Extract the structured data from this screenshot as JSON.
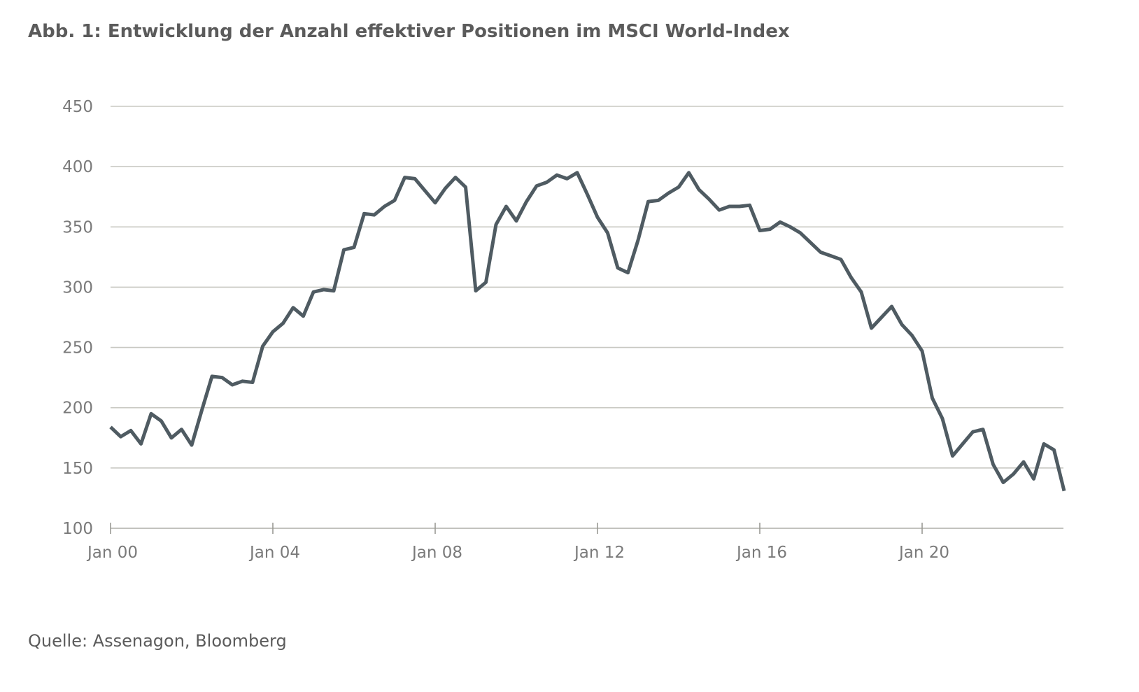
{
  "title": "Abb. 1: Entwicklung der Anzahl effektiver Positionen im MSCI World-Index",
  "source": "Quelle: Assenagon, Bloomberg",
  "chart_data": {
    "type": "line",
    "title": "Abb. 1: Entwicklung der Anzahl effektiver Positionen im MSCI World-Index",
    "xlabel": "",
    "ylabel": "",
    "ylim": [
      100,
      450
    ],
    "yticks": [
      100,
      150,
      200,
      250,
      300,
      350,
      400,
      450
    ],
    "xlim": [
      "2000-01",
      "2023-07"
    ],
    "xticks": [
      {
        "x": "2000-01",
        "label": "Jan 00"
      },
      {
        "x": "2004-01",
        "label": "Jan 04"
      },
      {
        "x": "2008-01",
        "label": "Jan 08"
      },
      {
        "x": "2012-01",
        "label": "Jan 12"
      },
      {
        "x": "2016-01",
        "label": "Jan 16"
      },
      {
        "x": "2020-01",
        "label": "Jan 20"
      }
    ],
    "grid": true,
    "line_color": "#4f5b62",
    "grid_color": "#c8c8c2",
    "series": [
      {
        "name": "",
        "x": [
          "2000-01",
          "2000-04",
          "2000-07",
          "2000-10",
          "2001-01",
          "2001-04",
          "2001-07",
          "2001-10",
          "2002-01",
          "2002-04",
          "2002-07",
          "2002-10",
          "2003-01",
          "2003-04",
          "2003-07",
          "2003-10",
          "2004-01",
          "2004-04",
          "2004-07",
          "2004-10",
          "2005-01",
          "2005-04",
          "2005-07",
          "2005-10",
          "2006-01",
          "2006-04",
          "2006-07",
          "2006-10",
          "2007-01",
          "2007-04",
          "2007-07",
          "2007-10",
          "2008-01",
          "2008-04",
          "2008-07",
          "2008-10",
          "2009-01",
          "2009-04",
          "2009-07",
          "2009-10",
          "2010-01",
          "2010-04",
          "2010-07",
          "2010-10",
          "2011-01",
          "2011-04",
          "2011-07",
          "2011-10",
          "2012-01",
          "2012-04",
          "2012-07",
          "2012-10",
          "2013-01",
          "2013-04",
          "2013-07",
          "2013-10",
          "2014-01",
          "2014-04",
          "2014-07",
          "2014-10",
          "2015-01",
          "2015-04",
          "2015-07",
          "2015-10",
          "2016-01",
          "2016-04",
          "2016-07",
          "2016-10",
          "2017-01",
          "2017-04",
          "2017-07",
          "2017-10",
          "2018-01",
          "2018-04",
          "2018-07",
          "2018-10",
          "2019-01",
          "2019-04",
          "2019-07",
          "2019-10",
          "2020-01",
          "2020-04",
          "2020-07",
          "2020-10",
          "2021-01",
          "2021-04",
          "2021-07",
          "2021-10",
          "2022-01",
          "2022-04",
          "2022-07",
          "2022-10",
          "2023-01",
          "2023-04",
          "2023-07"
        ],
        "values": [
          184,
          176,
          181,
          170,
          195,
          189,
          175,
          182,
          169,
          198,
          226,
          225,
          219,
          222,
          221,
          251,
          263,
          270,
          283,
          276,
          296,
          298,
          297,
          331,
          333,
          361,
          360,
          367,
          372,
          391,
          390,
          380,
          370,
          382,
          391,
          383,
          297,
          304,
          352,
          367,
          355,
          371,
          384,
          387,
          393,
          390,
          395,
          377,
          358,
          345,
          316,
          312,
          339,
          371,
          372,
          378,
          383,
          395,
          381,
          373,
          364,
          367,
          367,
          368,
          347,
          348,
          354,
          350,
          345,
          337,
          329,
          326,
          323,
          308,
          296,
          266,
          275,
          284,
          269,
          260,
          247,
          208,
          191,
          160,
          170,
          180,
          182,
          153,
          138,
          145,
          155,
          141,
          170,
          165,
          131
        ]
      }
    ]
  }
}
